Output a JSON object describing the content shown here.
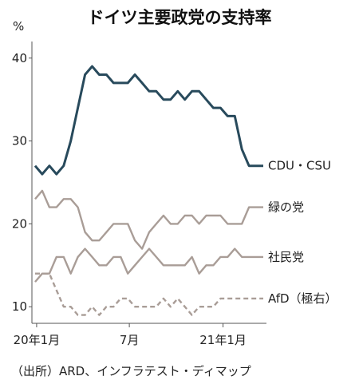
{
  "chart_data": {
    "type": "line",
    "title": "ドイツ主要政党の支持率",
    "ylabel": "%",
    "xlabel": "",
    "source": "（出所）ARD、インフラテスト・ディマップ",
    "ylim": [
      8,
      42
    ],
    "yticks": [
      10,
      20,
      30,
      40
    ],
    "x": [
      "2019-12-29",
      "2020-01-12",
      "2020-01-26",
      "2020-02-09",
      "2020-02-23",
      "2020-03-08",
      "2020-03-22",
      "2020-04-05",
      "2020-04-19",
      "2020-05-03",
      "2020-05-17",
      "2020-05-31",
      "2020-06-14",
      "2020-06-28",
      "2020-07-12",
      "2020-07-26",
      "2020-08-09",
      "2020-08-23",
      "2020-09-06",
      "2020-09-20",
      "2020-10-04",
      "2020-10-18",
      "2020-11-01",
      "2020-11-15",
      "2020-11-29",
      "2020-12-13",
      "2020-12-27",
      "2021-01-10",
      "2021-01-24",
      "2021-02-07",
      "2021-02-21",
      "2021-03-07",
      "2021-03-21"
    ],
    "xticks": [
      {
        "date": "2020-01-01",
        "label": "20年1月"
      },
      {
        "date": "2020-07-01",
        "label": "7月"
      },
      {
        "date": "2021-01-01",
        "label": "21年1月"
      }
    ],
    "series": [
      {
        "name": "CDU・CSU",
        "color": "#284a5c",
        "style": "solid",
        "values": [
          27,
          26,
          27,
          26,
          27,
          30,
          34,
          38,
          39,
          38,
          38,
          37,
          37,
          37,
          38,
          37,
          36,
          36,
          35,
          35,
          36,
          35,
          36,
          36,
          35,
          34,
          34,
          33,
          33,
          29,
          27,
          27,
          27
        ]
      },
      {
        "name": "緑の党",
        "color": "#a99d97",
        "style": "solid",
        "values": [
          23,
          24,
          22,
          22,
          23,
          23,
          22,
          19,
          18,
          18,
          19,
          20,
          20,
          20,
          18,
          17,
          19,
          20,
          21,
          20,
          20,
          21,
          21,
          20,
          21,
          21,
          21,
          20,
          20,
          20,
          22,
          22,
          22
        ]
      },
      {
        "name": "社民党",
        "color": "#a99d97",
        "style": "solid",
        "values": [
          13,
          14,
          14,
          16,
          16,
          14,
          16,
          17,
          16,
          15,
          15,
          16,
          16,
          14,
          15,
          16,
          17,
          16,
          15,
          15,
          15,
          15,
          16,
          14,
          15,
          15,
          16,
          16,
          17,
          16,
          16,
          16,
          16
        ]
      },
      {
        "name": "AfD（極右）",
        "color": "#a99d97",
        "style": "dashed",
        "values": [
          14,
          14,
          14,
          12,
          10,
          10,
          9,
          9,
          10,
          9,
          10,
          10,
          11,
          11,
          10,
          10,
          10,
          10,
          11,
          10,
          11,
          10,
          9,
          10,
          10,
          10,
          11,
          11,
          11,
          11,
          11,
          11,
          11
        ]
      }
    ],
    "label_end_index": 30
  }
}
